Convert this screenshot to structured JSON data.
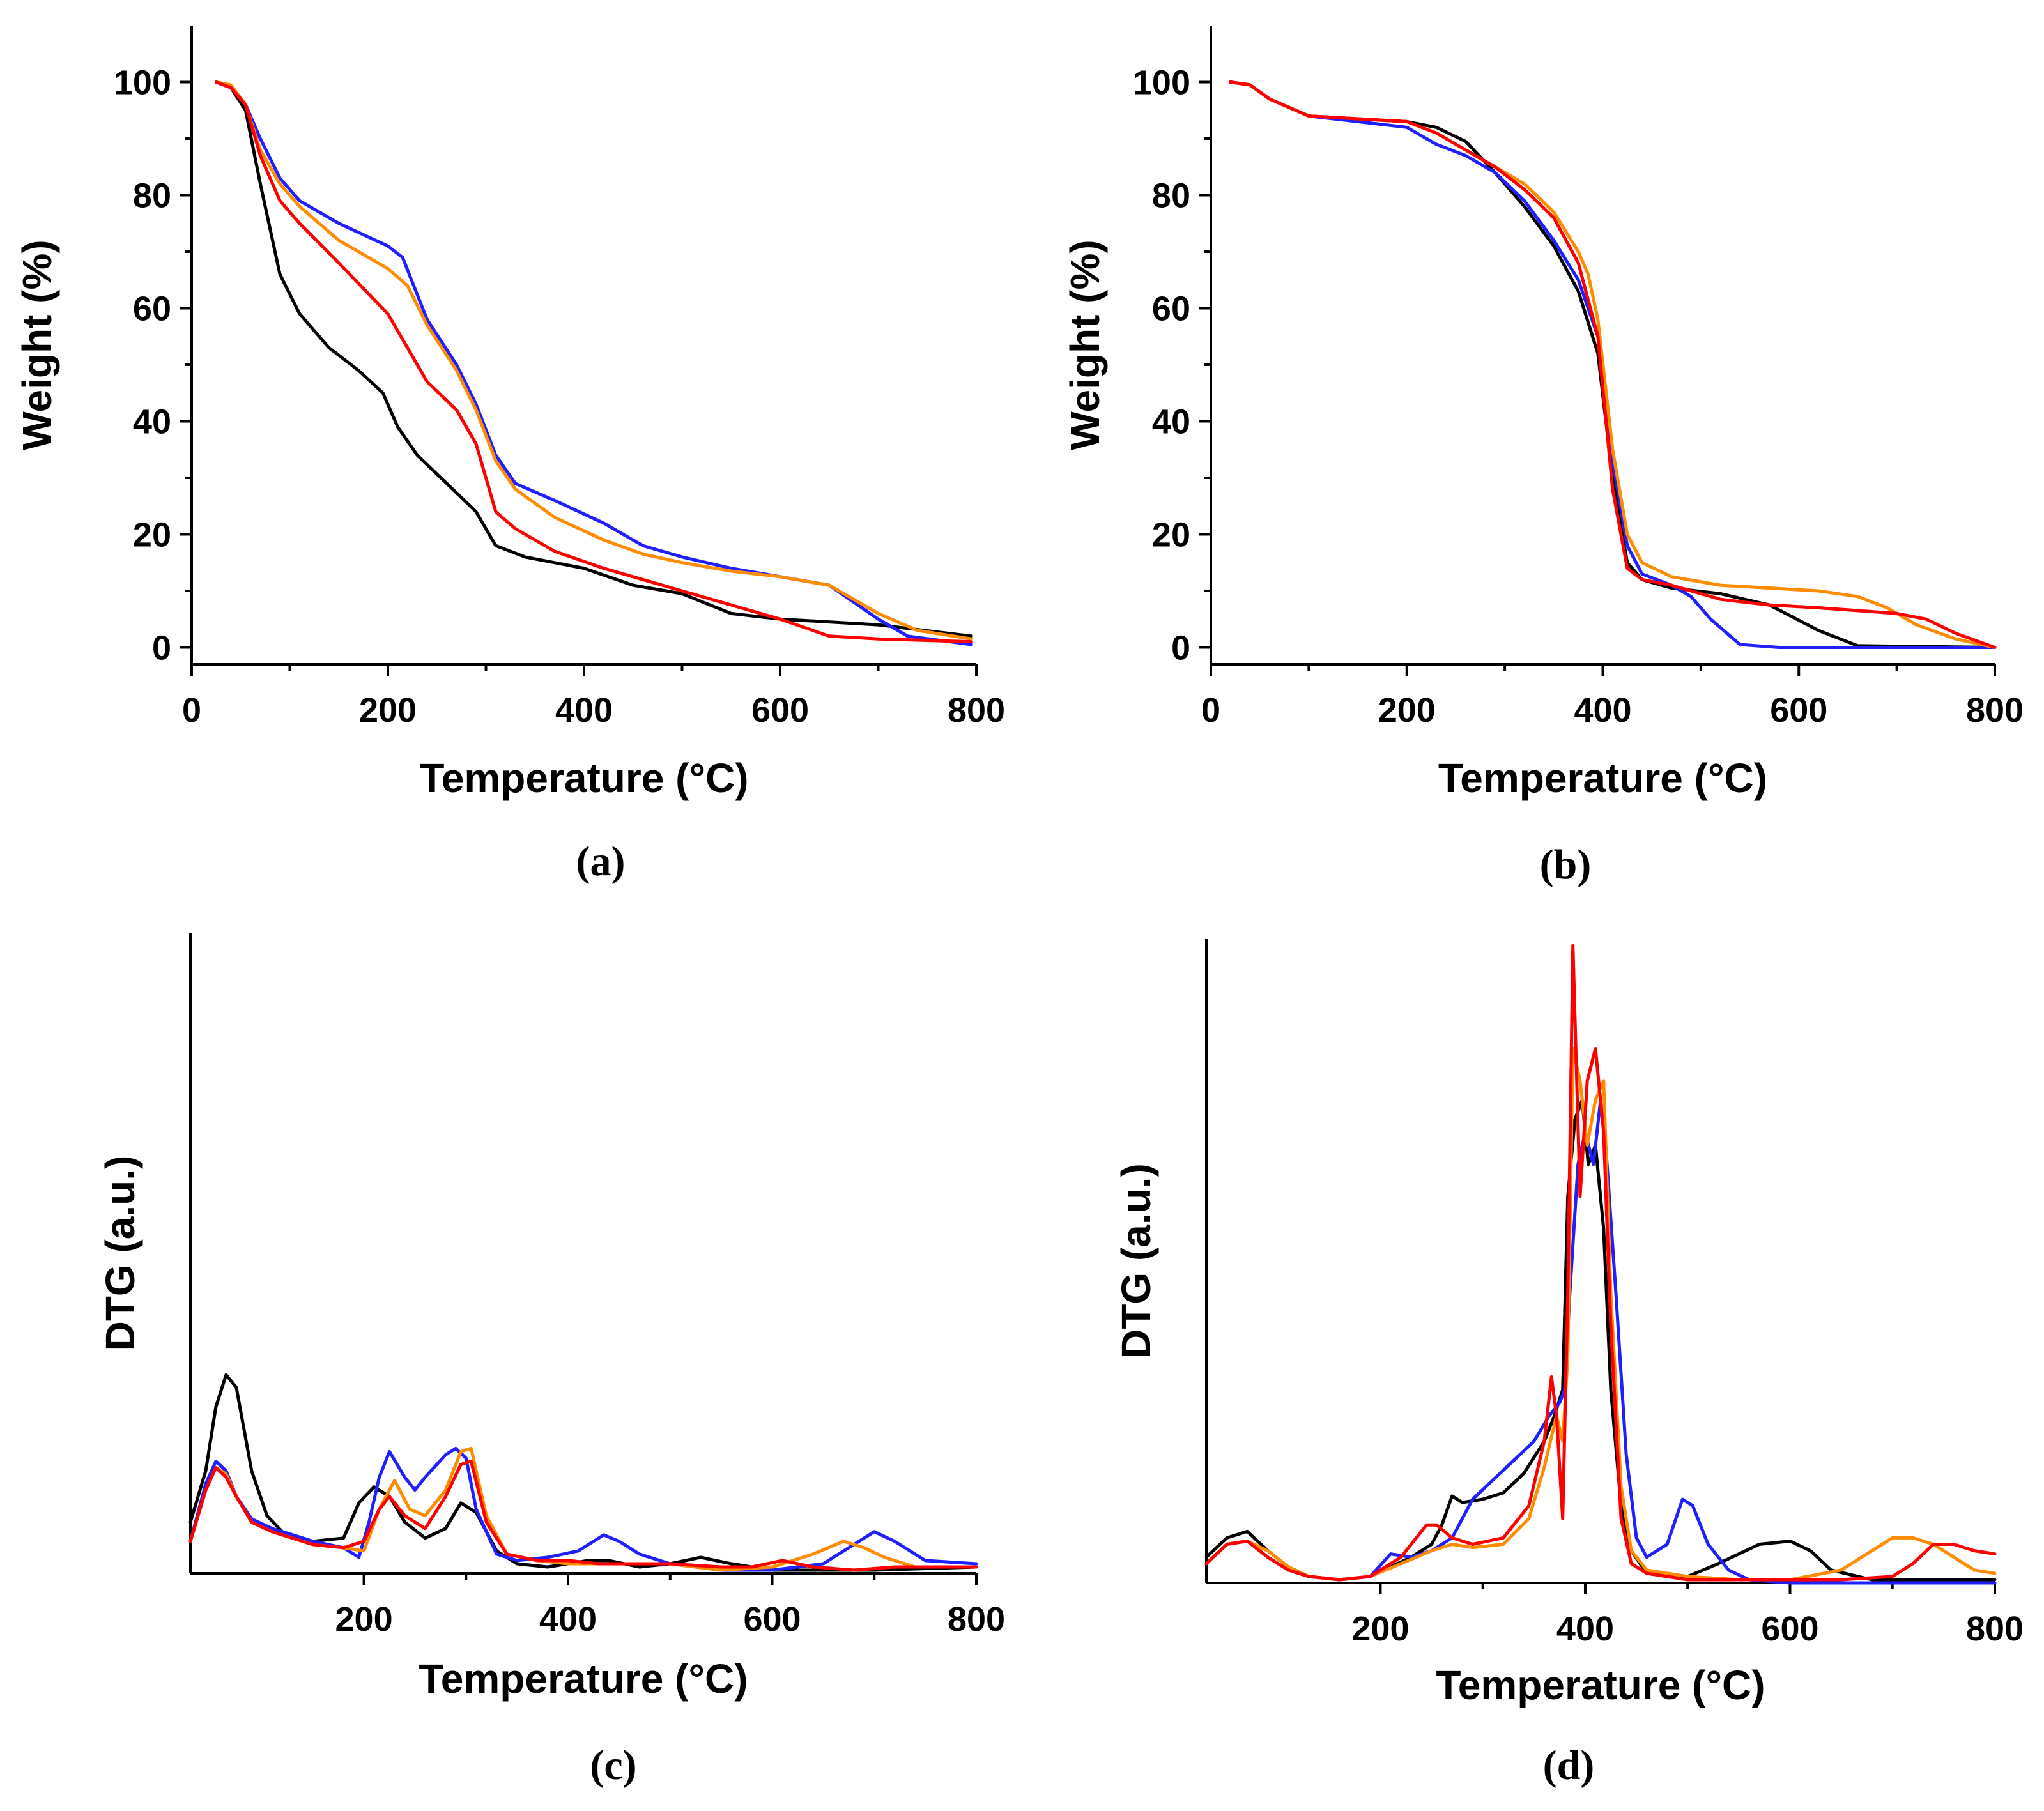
{
  "figure": {
    "panels": [
      {
        "id": "a",
        "label": "(a)"
      },
      {
        "id": "b",
        "label": "(b)"
      },
      {
        "id": "c",
        "label": "(c)"
      },
      {
        "id": "d",
        "label": "(d)"
      }
    ]
  },
  "colors": {
    "black": "#000000",
    "blue": "#1f1fff",
    "orange": "#ff8c00",
    "red": "#ff0000"
  },
  "chart_data": [
    {
      "panel": "a",
      "type": "line",
      "title": "",
      "xlabel": "Temperature (°C)",
      "ylabel": "Weight (%)",
      "xlim": [
        0,
        800
      ],
      "ylim": [
        -3,
        110
      ],
      "xticks": [
        0,
        200,
        400,
        600,
        800
      ],
      "yticks": [
        0,
        20,
        40,
        60,
        80,
        100
      ],
      "grid": false,
      "series": [
        {
          "name": "black",
          "color": "#000000",
          "x": [
            25,
            40,
            55,
            70,
            90,
            110,
            140,
            170,
            195,
            210,
            230,
            260,
            290,
            310,
            340,
            400,
            450,
            500,
            550,
            600,
            700,
            795
          ],
          "y": [
            100,
            99,
            95,
            82,
            66,
            59,
            53,
            49,
            45,
            39,
            34,
            29,
            24,
            18,
            16,
            14,
            11,
            9.5,
            6,
            5,
            4,
            2
          ]
        },
        {
          "name": "blue",
          "color": "#1f1fff",
          "x": [
            25,
            40,
            55,
            70,
            90,
            110,
            150,
            200,
            215,
            240,
            270,
            290,
            310,
            330,
            370,
            420,
            460,
            500,
            550,
            600,
            650,
            675,
            700,
            730,
            795
          ],
          "y": [
            100,
            99,
            96,
            90,
            83,
            79,
            75,
            71,
            69,
            58,
            50,
            43,
            34,
            29,
            26,
            22,
            18,
            16,
            14,
            12.5,
            11,
            8,
            5,
            2,
            0.5
          ]
        },
        {
          "name": "orange",
          "color": "#ff8c00",
          "x": [
            25,
            40,
            55,
            70,
            90,
            110,
            150,
            200,
            220,
            240,
            270,
            290,
            310,
            330,
            370,
            420,
            460,
            500,
            550,
            600,
            650,
            700,
            740,
            795
          ],
          "y": [
            100,
            99.5,
            96,
            88,
            82,
            78,
            72,
            67,
            64,
            57,
            49,
            42,
            33,
            28,
            23,
            19,
            16.5,
            15,
            13.5,
            12.5,
            11,
            6,
            3,
            1.5
          ]
        },
        {
          "name": "red",
          "color": "#ff0000",
          "x": [
            25,
            40,
            55,
            70,
            90,
            110,
            150,
            200,
            220,
            240,
            270,
            290,
            310,
            330,
            370,
            420,
            460,
            500,
            550,
            600,
            650,
            700,
            795
          ],
          "y": [
            100,
            99,
            96,
            87,
            79,
            75,
            68,
            59,
            53,
            47,
            42,
            36,
            24,
            21,
            17,
            14,
            12,
            10,
            7.5,
            5,
            2,
            1.5,
            1
          ]
        }
      ]
    },
    {
      "panel": "b",
      "type": "line",
      "title": "",
      "xlabel": "Temperature (°C)",
      "ylabel": "Weight (%)",
      "xlim": [
        0,
        800
      ],
      "ylim": [
        -3,
        110
      ],
      "xticks": [
        0,
        200,
        400,
        600,
        800
      ],
      "yticks": [
        0,
        20,
        40,
        60,
        80,
        100
      ],
      "grid": false,
      "series": [
        {
          "name": "black",
          "color": "#000000",
          "x": [
            20,
            40,
            60,
            100,
            150,
            200,
            230,
            260,
            290,
            320,
            350,
            375,
            395,
            410,
            425,
            440,
            470,
            520,
            570,
            620,
            660,
            800
          ],
          "y": [
            100,
            99.5,
            97,
            94,
            93.5,
            93,
            92,
            89.5,
            84,
            78,
            71,
            63,
            52,
            30,
            15,
            12,
            10.5,
            9.5,
            7.5,
            3,
            0.3,
            0
          ]
        },
        {
          "name": "blue",
          "color": "#1f1fff",
          "x": [
            20,
            40,
            60,
            100,
            150,
            200,
            230,
            260,
            290,
            320,
            350,
            375,
            395,
            410,
            425,
            440,
            470,
            490,
            510,
            540,
            580,
            800
          ],
          "y": [
            100,
            99.5,
            97,
            94,
            93,
            92,
            89,
            87,
            84,
            79,
            72,
            65,
            55,
            33,
            18,
            13,
            11,
            9,
            5,
            0.5,
            0,
            0
          ]
        },
        {
          "name": "orange",
          "color": "#ff8c00",
          "x": [
            20,
            40,
            60,
            100,
            150,
            200,
            230,
            260,
            290,
            320,
            350,
            375,
            385,
            395,
            410,
            425,
            440,
            470,
            520,
            570,
            620,
            660,
            690,
            720,
            760,
            800
          ],
          "y": [
            100,
            99.5,
            97,
            94,
            93.5,
            93,
            91,
            88,
            85,
            82,
            77,
            70,
            66,
            58,
            35,
            20,
            15,
            12.5,
            11,
            10.5,
            10,
            9,
            7,
            4,
            1.5,
            0
          ]
        },
        {
          "name": "red",
          "color": "#ff0000",
          "x": [
            20,
            40,
            60,
            100,
            150,
            200,
            230,
            260,
            290,
            320,
            350,
            375,
            395,
            410,
            425,
            440,
            470,
            520,
            570,
            620,
            660,
            700,
            730,
            760,
            800
          ],
          "y": [
            100,
            99.5,
            97,
            94,
            93.5,
            93,
            91,
            88,
            85,
            81,
            76,
            68,
            55,
            28,
            14,
            12,
            11,
            8.5,
            7.5,
            7,
            6.5,
            6,
            5,
            2.5,
            0
          ]
        }
      ]
    },
    {
      "panel": "c",
      "type": "line",
      "title": "",
      "xlabel": "Temperature (°C)",
      "ylabel": "DTG (a.u.)",
      "xlim": [
        30,
        800
      ],
      "ylim": [
        0,
        100
      ],
      "xticks": [
        200,
        400,
        600,
        800
      ],
      "yticks": [],
      "grid": false,
      "series": [
        {
          "name": "black",
          "color": "#000000",
          "x": [
            30,
            45,
            55,
            65,
            75,
            90,
            105,
            120,
            150,
            180,
            195,
            210,
            225,
            240,
            260,
            280,
            295,
            310,
            330,
            350,
            380,
            400,
            420,
            440,
            470,
            500,
            530,
            560,
            600,
            700,
            800
          ],
          "y": [
            8,
            16,
            26,
            31,
            29,
            16,
            9,
            6.5,
            5,
            5.5,
            11,
            13.5,
            12,
            8,
            5.5,
            7,
            11,
            9.5,
            3.5,
            1.5,
            1,
            1.5,
            2,
            2,
            1,
            1.5,
            2.5,
            1.5,
            0.5,
            0.5,
            1
          ]
        },
        {
          "name": "blue",
          "color": "#1f1fff",
          "x": [
            30,
            45,
            55,
            65,
            75,
            90,
            110,
            130,
            150,
            180,
            195,
            205,
            215,
            225,
            240,
            250,
            260,
            280,
            290,
            300,
            310,
            330,
            350,
            380,
            410,
            435,
            450,
            470,
            500,
            550,
            600,
            650,
            680,
            700,
            720,
            750,
            800
          ],
          "y": [
            5,
            14,
            17.5,
            16,
            12,
            8.5,
            7,
            6,
            5,
            4,
            2.5,
            8,
            15,
            19,
            15,
            13,
            15,
            18.5,
            19.5,
            18,
            10,
            3,
            2,
            2.5,
            3.5,
            6,
            5,
            3,
            1.5,
            0.5,
            0.5,
            1.5,
            4.5,
            6.5,
            5,
            2,
            1.5
          ]
        },
        {
          "name": "orange",
          "color": "#ff8c00",
          "x": [
            30,
            45,
            55,
            65,
            75,
            90,
            110,
            130,
            150,
            180,
            200,
            215,
            230,
            245,
            260,
            280,
            295,
            305,
            320,
            340,
            370,
            400,
            430,
            460,
            500,
            550,
            600,
            640,
            670,
            690,
            710,
            740,
            800
          ],
          "y": [
            5,
            13,
            16.5,
            15.5,
            12,
            8,
            6.5,
            5.5,
            4.5,
            4,
            3.5,
            10,
            14.5,
            10,
            9,
            13,
            19,
            19.5,
            9,
            3,
            2,
            1.5,
            1.5,
            1.5,
            1.5,
            0.5,
            1,
            3,
            5,
            4,
            2.5,
            1,
            1
          ]
        },
        {
          "name": "red",
          "color": "#ff0000",
          "x": [
            30,
            45,
            55,
            65,
            75,
            90,
            110,
            130,
            150,
            180,
            200,
            215,
            225,
            240,
            260,
            280,
            295,
            305,
            320,
            340,
            370,
            400,
            430,
            460,
            500,
            550,
            580,
            610,
            640,
            680,
            720,
            800
          ],
          "y": [
            5,
            13,
            16.5,
            15,
            12,
            8,
            6.5,
            5.5,
            4.5,
            4,
            5,
            10,
            12,
            9,
            7,
            12,
            17,
            17.5,
            8,
            3,
            2,
            2,
            1.5,
            1.5,
            1.5,
            1,
            1,
            2,
            1,
            0.5,
            1,
            1
          ]
        }
      ]
    },
    {
      "panel": "d",
      "type": "line",
      "title": "",
      "xlabel": "Temperature (°C)",
      "ylabel": "DTG (a.u.)",
      "xlim": [
        30,
        800
      ],
      "ylim": [
        0,
        100
      ],
      "xticks": [
        200,
        400,
        600,
        800
      ],
      "yticks": [],
      "grid": false,
      "series": [
        {
          "name": "black",
          "color": "#000000",
          "x": [
            30,
            50,
            70,
            90,
            110,
            130,
            160,
            190,
            210,
            230,
            250,
            260,
            270,
            280,
            300,
            320,
            340,
            360,
            370,
            378,
            383,
            390,
            397,
            403,
            410,
            418,
            425,
            435,
            445,
            460,
            480,
            500,
            530,
            570,
            600,
            620,
            640,
            680,
            720,
            800
          ],
          "y": [
            4,
            7,
            8,
            5,
            2.5,
            1,
            0.5,
            1,
            2.5,
            4,
            6,
            9,
            13.5,
            12.5,
            13,
            14,
            17,
            22,
            26,
            30,
            60,
            72,
            75,
            65,
            68,
            55,
            30,
            12,
            5,
            1.5,
            1,
            1,
            3,
            6,
            6.5,
            5,
            2,
            0.5,
            0.5,
            0.5
          ]
        },
        {
          "name": "blue",
          "color": "#1f1fff",
          "x": [
            30,
            50,
            70,
            90,
            110,
            130,
            160,
            190,
            210,
            230,
            250,
            270,
            290,
            310,
            330,
            350,
            365,
            375,
            380,
            385,
            393,
            400,
            408,
            415,
            420,
            430,
            440,
            450,
            460,
            480,
            495,
            505,
            520,
            540,
            560,
            600,
            800
          ],
          "y": [
            3,
            6,
            6.5,
            4,
            2,
            1,
            0.5,
            1,
            4.5,
            4,
            5,
            7,
            13,
            16,
            19,
            22,
            26,
            28,
            30,
            45,
            65,
            70,
            65,
            75,
            68,
            45,
            20,
            7,
            4,
            6,
            13,
            12,
            6,
            2,
            0.5,
            0,
            0
          ]
        },
        {
          "name": "orange",
          "color": "#ff8c00",
          "x": [
            30,
            50,
            70,
            90,
            110,
            130,
            160,
            190,
            220,
            250,
            270,
            290,
            320,
            345,
            360,
            372,
            378,
            383,
            388,
            395,
            402,
            410,
            418,
            425,
            435,
            445,
            460,
            500,
            550,
            600,
            650,
            680,
            700,
            720,
            740,
            760,
            780,
            800
          ],
          "y": [
            3,
            6,
            6.5,
            5,
            2.5,
            1,
            0.5,
            1,
            3,
            5,
            6,
            5.5,
            6,
            10,
            18,
            26,
            22,
            35,
            83,
            78,
            68,
            75,
            78,
            45,
            15,
            5,
            2,
            1,
            0.5,
            0.5,
            2,
            5,
            7,
            7,
            6,
            4,
            2,
            1.5
          ]
        },
        {
          "name": "red",
          "color": "#ff0000",
          "x": [
            30,
            50,
            70,
            90,
            110,
            130,
            160,
            190,
            220,
            245,
            255,
            270,
            290,
            320,
            345,
            360,
            367,
            372,
            378,
            383,
            388,
            395,
            402,
            410,
            418,
            425,
            435,
            445,
            460,
            500,
            550,
            600,
            650,
            700,
            720,
            740,
            760,
            780,
            800
          ],
          "y": [
            3,
            6,
            6.5,
            4,
            2,
            1,
            0.5,
            1,
            4,
            9,
            9,
            7,
            6,
            7,
            12,
            22,
            32,
            26,
            10,
            45,
            99,
            60,
            78,
            83,
            70,
            40,
            10,
            3,
            1.5,
            0.5,
            0.5,
            0.5,
            0.5,
            1,
            3,
            6,
            6,
            5,
            4.5
          ]
        }
      ]
    }
  ]
}
